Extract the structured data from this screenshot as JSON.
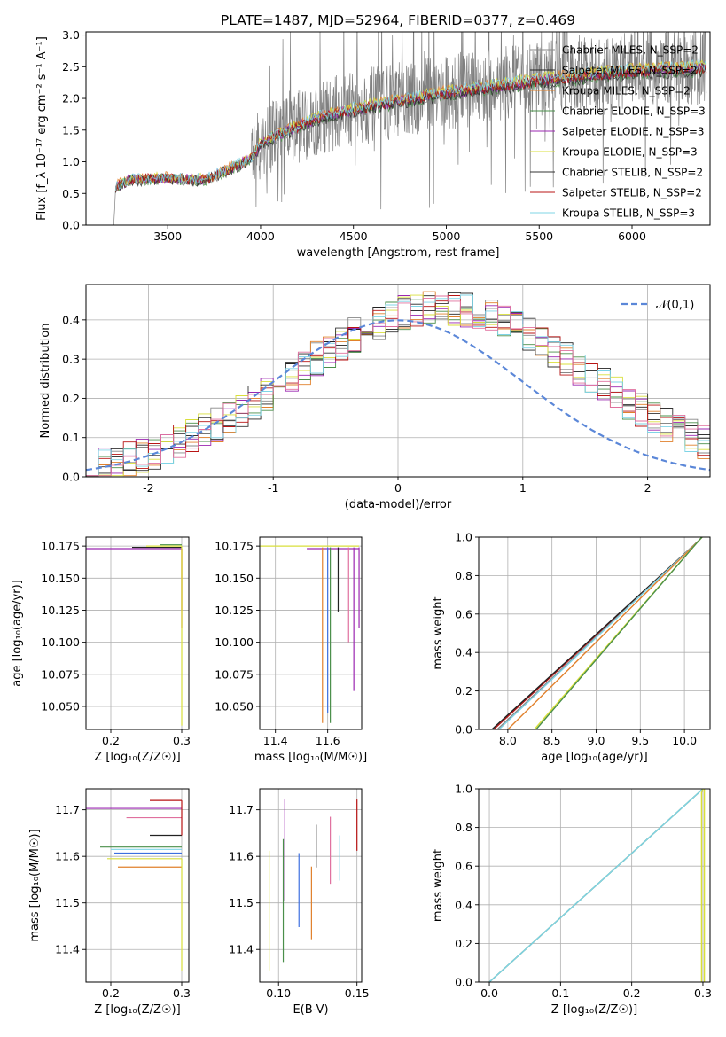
{
  "figure_title": "PLATE=1487, MJD=52964, FIBERID=0377, z=0.469",
  "palette": [
    "#888888",
    "#222222",
    "#e1812c",
    "#4a8f4a",
    "#9b27b0",
    "#d9df3b",
    "#333333",
    "#b81414",
    "#7fd4e6",
    "#3d6fe0",
    "#e0709e"
  ],
  "chart_data": [
    {
      "id": "spectrum",
      "type": "line",
      "title": "PLATE=1487, MJD=52964, FIBERID=0377, z=0.469",
      "xlabel": "wavelength [Angstrom, rest frame]",
      "ylabel": "Flux [f_λ 10⁻¹⁷ erg cm⁻² s⁻¹ A⁻¹]",
      "xlim": [
        3060,
        6420
      ],
      "ylim": [
        0,
        3.05
      ],
      "xticks": [
        3500,
        4000,
        4500,
        5000,
        5500,
        6000
      ],
      "yticks": [
        0.0,
        0.5,
        1.0,
        1.5,
        2.0,
        2.5,
        3.0
      ],
      "grid": false,
      "legend_position": "top-right",
      "data_series": {
        "name": "",
        "x_start": 3210,
        "x_end": 6400,
        "flux_anchors": [
          [
            3210,
            0.0
          ],
          [
            3220,
            0.62
          ],
          [
            3300,
            0.72
          ],
          [
            3500,
            0.75
          ],
          [
            3700,
            0.72
          ],
          [
            3800,
            0.85
          ],
          [
            3950,
            1.05
          ],
          [
            4000,
            1.3
          ],
          [
            4300,
            1.7
          ],
          [
            4600,
            1.9
          ],
          [
            5000,
            2.1
          ],
          [
            5500,
            2.3
          ],
          [
            6000,
            2.45
          ],
          [
            6400,
            2.5
          ]
        ],
        "noise_amplitude": 0.6
      },
      "models": [
        {
          "name": "Chabrier MILES, N_SSP=2",
          "color": "#888888",
          "width": 0.8
        },
        {
          "name": "Salpeter MILES, N_SSP=2",
          "color": "#222222",
          "width": 0.8
        },
        {
          "name": "Kroupa MILES, N_SSP=2",
          "color": "#e1812c",
          "width": 0.8
        },
        {
          "name": "Chabrier ELODIE, N_SSP=3",
          "color": "#4a8f4a",
          "width": 0.8
        },
        {
          "name": "Salpeter ELODIE, N_SSP=3",
          "color": "#9b27b0",
          "width": 0.8
        },
        {
          "name": "Kroupa ELODIE, N_SSP=3",
          "color": "#d9df3b",
          "width": 0.8
        },
        {
          "name": "Chabrier STELIB, N_SSP=2",
          "color": "#333333",
          "width": 0.8
        },
        {
          "name": "Salpeter STELIB, N_SSP=2",
          "color": "#b81414",
          "width": 0.8
        },
        {
          "name": "Kroupa STELIB, N_SSP=3",
          "color": "#7fd4e6",
          "width": 0.8
        }
      ]
    },
    {
      "id": "residuals",
      "type": "line",
      "xlabel": "(data-model)/error",
      "ylabel": "Normed distribution",
      "xlim": [
        -2.5,
        2.5
      ],
      "ylim": [
        0,
        0.49
      ],
      "xticks": [
        -2,
        -1,
        0,
        1,
        2
      ],
      "yticks": [
        0.0,
        0.1,
        0.2,
        0.3,
        0.4
      ],
      "grid": true,
      "legend_position": "top-right",
      "reference": {
        "name": "𝒩(0,1)",
        "mean": 0,
        "sigma": 1,
        "color": "#5b87d8",
        "style": "dashed"
      },
      "bin_width": 0.1,
      "series": [
        {
          "name": "",
          "color": "#888888"
        },
        {
          "name": "",
          "color": "#222222"
        },
        {
          "name": "",
          "color": "#e1812c"
        },
        {
          "name": "",
          "color": "#4a8f4a"
        },
        {
          "name": "",
          "color": "#9b27b0"
        },
        {
          "name": "",
          "color": "#d9df3b"
        },
        {
          "name": "",
          "color": "#333333"
        },
        {
          "name": "",
          "color": "#b81414"
        },
        {
          "name": "",
          "color": "#7fd4e6"
        },
        {
          "name": "",
          "color": "#e0709e"
        }
      ]
    },
    {
      "id": "age_vs_Z",
      "type": "line",
      "xlabel": "Z [log₁₀(Z/Z☉)]",
      "ylabel": "age  [log₁₀(age/yr)]",
      "xlim": [
        0.165,
        0.31
      ],
      "ylim": [
        10.032,
        10.182
      ],
      "xticks": [
        0.2,
        0.3
      ],
      "yticks": [
        10.05,
        10.075,
        10.1,
        10.125,
        10.15,
        10.175
      ],
      "grid": true,
      "segments": [
        {
          "color": "#9b27b0",
          "x0": 0.165,
          "y0": 10.173,
          "x1": 0.3,
          "y1": 10.173
        },
        {
          "color": "#222222",
          "x0": 0.23,
          "y0": 10.174,
          "x1": 0.3,
          "y1": 10.174
        },
        {
          "color": "#d9df3b",
          "x0": 0.25,
          "y0": 10.175,
          "x1": 0.3,
          "y1": 10.175
        },
        {
          "color": "#4a8f4a",
          "x0": 0.27,
          "y0": 10.176,
          "x1": 0.3,
          "y1": 10.176
        },
        {
          "color": "#b81414",
          "x0": 0.3,
          "y0": 10.173,
          "x1": 0.3,
          "y1": 10.111
        },
        {
          "color": "#e1812c",
          "x0": 0.3,
          "y0": 10.173,
          "x1": 0.3,
          "y1": 10.125
        },
        {
          "color": "#d9df3b",
          "x0": 0.3,
          "y0": 10.175,
          "x1": 0.3,
          "y1": 10.035
        }
      ]
    },
    {
      "id": "age_vs_mass",
      "type": "line",
      "xlabel": "mass [log₁₀(M/M☉)]",
      "ylabel": "",
      "xlim": [
        11.34,
        11.73
      ],
      "ylim": [
        10.032,
        10.182
      ],
      "xticks": [
        11.4,
        11.6
      ],
      "yticks": [
        10.05,
        10.075,
        10.1,
        10.125,
        10.15,
        10.175
      ],
      "grid": true,
      "segments": [
        {
          "color": "#d9df3b",
          "x0": 11.34,
          "y0": 10.175,
          "x1": 11.72,
          "y1": 10.175
        },
        {
          "color": "#9b27b0",
          "x0": 11.52,
          "y0": 10.173,
          "x1": 11.72,
          "y1": 10.173
        },
        {
          "color": "#e1812c",
          "x0": 11.58,
          "y0": 10.174,
          "x1": 11.58,
          "y1": 10.037
        },
        {
          "color": "#4a8f4a",
          "x0": 11.61,
          "y0": 10.174,
          "x1": 11.61,
          "y1": 10.037
        },
        {
          "color": "#3d6fe0",
          "x0": 11.6,
          "y0": 10.174,
          "x1": 11.6,
          "y1": 10.045
        },
        {
          "color": "#222222",
          "x0": 11.64,
          "y0": 10.174,
          "x1": 11.64,
          "y1": 10.124
        },
        {
          "color": "#e0709e",
          "x0": 11.68,
          "y0": 10.174,
          "x1": 11.68,
          "y1": 10.1
        },
        {
          "color": "#9b27b0",
          "x0": 11.7,
          "y0": 10.174,
          "x1": 11.7,
          "y1": 10.062
        },
        {
          "color": "#9b27b0",
          "x0": 11.72,
          "y0": 10.174,
          "x1": 11.72,
          "y1": 10.111
        }
      ]
    },
    {
      "id": "massweight_vs_age",
      "type": "line",
      "xlabel": "age  [log₁₀(age/yr)]",
      "ylabel": "mass weight",
      "xlim": [
        7.67,
        10.29
      ],
      "ylim": [
        0,
        1
      ],
      "xticks": [
        8.0,
        8.5,
        9.0,
        9.5,
        10.0
      ],
      "yticks": [
        0.0,
        0.2,
        0.4,
        0.6,
        0.8,
        1.0
      ],
      "grid": true,
      "series": [
        {
          "name": "",
          "color": "#b81414",
          "x": [
            7.84,
            10.16,
            10.2
          ],
          "y": [
            0,
            0.98,
            1
          ]
        },
        {
          "name": "",
          "color": "#222222",
          "x": [
            7.82,
            10.16,
            10.2
          ],
          "y": [
            0,
            0.98,
            1
          ]
        },
        {
          "name": "",
          "color": "#888888",
          "x": [
            7.88,
            10.16,
            10.2
          ],
          "y": [
            0,
            0.98,
            1
          ]
        },
        {
          "name": "",
          "color": "#7fd4e6",
          "x": [
            7.9,
            10.16,
            10.2
          ],
          "y": [
            0,
            0.98,
            1
          ]
        },
        {
          "name": "",
          "color": "#e1812c",
          "x": [
            8.0,
            10.16,
            10.2
          ],
          "y": [
            0,
            0.98,
            1
          ]
        },
        {
          "name": "",
          "color": "#d9df3b",
          "x": [
            8.3,
            10.16,
            10.2
          ],
          "y": [
            0,
            0.98,
            1
          ]
        },
        {
          "name": "",
          "color": "#4a8f4a",
          "x": [
            8.32,
            10.16,
            10.2
          ],
          "y": [
            0,
            0.98,
            1
          ]
        }
      ]
    },
    {
      "id": "mass_vs_Z",
      "type": "line",
      "xlabel": "Z [log₁₀(Z/Z☉)]",
      "ylabel": "mass [log₁₀(M/M☉)]",
      "xlim": [
        0.165,
        0.31
      ],
      "ylim": [
        11.33,
        11.745
      ],
      "xticks": [
        0.2,
        0.3
      ],
      "yticks": [
        11.4,
        11.5,
        11.6,
        11.7
      ],
      "grid": true,
      "segments": [
        {
          "color": "#b81414",
          "x0": 0.255,
          "y0": 11.72,
          "x1": 0.3,
          "y1": 11.72
        },
        {
          "color": "#9b27b0",
          "x0": 0.165,
          "y0": 11.703,
          "x1": 0.3,
          "y1": 11.703
        },
        {
          "color": "#e0709e",
          "x0": 0.222,
          "y0": 11.683,
          "x1": 0.3,
          "y1": 11.683
        },
        {
          "color": "#222222",
          "x0": 0.255,
          "y0": 11.645,
          "x1": 0.3,
          "y1": 11.645
        },
        {
          "color": "#4a8f4a",
          "x0": 0.185,
          "y0": 11.62,
          "x1": 0.3,
          "y1": 11.62
        },
        {
          "color": "#7fd4e6",
          "x0": 0.2,
          "y0": 11.615,
          "x1": 0.3,
          "y1": 11.615
        },
        {
          "color": "#3d6fe0",
          "x0": 0.205,
          "y0": 11.607,
          "x1": 0.3,
          "y1": 11.607
        },
        {
          "color": "#d9df3b",
          "x0": 0.195,
          "y0": 11.595,
          "x1": 0.3,
          "y1": 11.595
        },
        {
          "color": "#e1812c",
          "x0": 0.21,
          "y0": 11.577,
          "x1": 0.3,
          "y1": 11.577
        },
        {
          "color": "#b81414",
          "x0": 0.3,
          "y0": 11.72,
          "x1": 0.3,
          "y1": 11.645
        },
        {
          "color": "#d9df3b",
          "x0": 0.3,
          "y0": 11.595,
          "x1": 0.3,
          "y1": 11.355
        }
      ]
    },
    {
      "id": "mass_vs_ebv",
      "type": "line",
      "xlabel": "E(B-V)",
      "ylabel": "",
      "xlim": [
        0.088,
        0.153
      ],
      "ylim": [
        11.33,
        11.745
      ],
      "xticks": [
        0.1,
        0.15
      ],
      "yticks": [
        11.4,
        11.5,
        11.6,
        11.7
      ],
      "grid": true,
      "segments": [
        {
          "color": "#d9df3b",
          "x0": 0.094,
          "y0": 11.612,
          "x1": 0.094,
          "y1": 11.355
        },
        {
          "color": "#4a8f4a",
          "x0": 0.103,
          "y0": 11.637,
          "x1": 0.103,
          "y1": 11.373
        },
        {
          "color": "#9b27b0",
          "x0": 0.104,
          "y0": 11.722,
          "x1": 0.104,
          "y1": 11.504
        },
        {
          "color": "#3d6fe0",
          "x0": 0.113,
          "y0": 11.607,
          "x1": 0.113,
          "y1": 11.448
        },
        {
          "color": "#e1812c",
          "x0": 0.121,
          "y0": 11.578,
          "x1": 0.121,
          "y1": 11.422
        },
        {
          "color": "#222222",
          "x0": 0.124,
          "y0": 11.668,
          "x1": 0.124,
          "y1": 11.576
        },
        {
          "color": "#e0709e",
          "x0": 0.133,
          "y0": 11.685,
          "x1": 0.133,
          "y1": 11.541
        },
        {
          "color": "#7fd4e6",
          "x0": 0.139,
          "y0": 11.645,
          "x1": 0.139,
          "y1": 11.548
        },
        {
          "color": "#b81414",
          "x0": 0.15,
          "y0": 11.722,
          "x1": 0.15,
          "y1": 11.612
        }
      ]
    },
    {
      "id": "massweight_vs_Z",
      "type": "line",
      "xlabel": "Z [log₁₀(Z/Z☉)]",
      "ylabel": "mass weight",
      "xlim": [
        -0.015,
        0.31
      ],
      "ylim": [
        0,
        1
      ],
      "xticks": [
        0.0,
        0.1,
        0.2,
        0.3
      ],
      "yticks": [
        0.0,
        0.2,
        0.4,
        0.6,
        0.8,
        1.0
      ],
      "grid": true,
      "series": [
        {
          "name": "",
          "color": "#888888",
          "x": [
            0.0,
            0.3
          ],
          "y": [
            0,
            1
          ]
        },
        {
          "name": "",
          "color": "#4a8f4a",
          "x": [
            0.0,
            0.3
          ],
          "y": [
            0,
            1
          ]
        },
        {
          "name": "",
          "color": "#7fd4e6",
          "x": [
            0.0,
            0.3
          ],
          "y": [
            0,
            1
          ]
        },
        {
          "name": "",
          "color": "#d9df3b",
          "x": [
            0.298,
            0.298,
            0.3
          ],
          "y": [
            0,
            0.98,
            1
          ]
        },
        {
          "name": "",
          "color": "#d9df3b",
          "x": [
            0.302,
            0.302
          ],
          "y": [
            0,
            1
          ]
        }
      ]
    }
  ]
}
